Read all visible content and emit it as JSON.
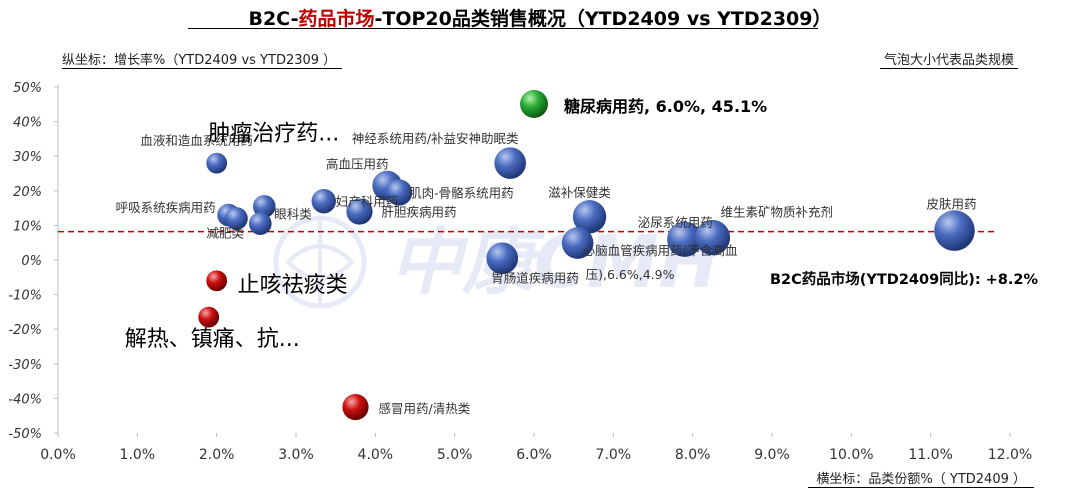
{
  "title": {
    "prefix": "B2C-",
    "accent": "药品市场",
    "suffix": "-TOP20品类销售概况（YTD2409  vs YTD2309）"
  },
  "y_axis_note": "纵坐标：增长率%（YTD2409 vs YTD2309 ）",
  "bubble_note": "气泡大小代表品类规模",
  "x_axis_note": "横坐标：品类份额%（ YTD2409 ）",
  "baseline_label": "B2C药品市场(YTD2409同比): +8.2%",
  "watermark": "中康CMH",
  "colors": {
    "blue": "#2f4f9e",
    "green": "#1a9c2a",
    "red": "#c00000",
    "baseline": "#c00000"
  },
  "chart_data": {
    "type": "scatter",
    "bubble": true,
    "xlabel": "横坐标：品类份额%（ YTD2409 ）",
    "ylabel": "纵坐标：增长率%（YTD2409 vs YTD2309 ）",
    "xlim": [
      0,
      12
    ],
    "ylim": [
      -50,
      50
    ],
    "x_ticks": [
      "0.0%",
      "1.0%",
      "2.0%",
      "3.0%",
      "4.0%",
      "5.0%",
      "6.0%",
      "7.0%",
      "8.0%",
      "9.0%",
      "10.0%",
      "11.0%",
      "12.0%"
    ],
    "y_ticks": [
      "50%",
      "40%",
      "30%",
      "20%",
      "10%",
      "0%",
      "-10%",
      "-20%",
      "-30%",
      "-40%",
      "-50%"
    ],
    "reference_line": {
      "y": 8.2,
      "label": "B2C药品市场(YTD2409同比): +8.2%"
    },
    "grid": false,
    "points": [
      {
        "name": "糖尿病用药, 6.0%, 45.1%",
        "x": 6.0,
        "y": 45.1,
        "size": 1.0,
        "color": "green"
      },
      {
        "name": "血液和造血系统用药",
        "x": 2.0,
        "y": 28.0,
        "size": 0.6,
        "color": "blue"
      },
      {
        "name": "神经系统用药/补益安神助眠类",
        "x": 5.7,
        "y": 28.0,
        "size": 1.2,
        "color": "blue"
      },
      {
        "name": "高血压用药",
        "x": 4.15,
        "y": 21.5,
        "size": 1.1,
        "color": "blue"
      },
      {
        "name": "肌肉-骨骼系统用药",
        "x": 4.3,
        "y": 19.5,
        "size": 0.9,
        "color": "blue"
      },
      {
        "name": "肿瘤治疗药...",
        "x": 2.6,
        "y": 15.5,
        "size": 0.7,
        "color": "blue"
      },
      {
        "name": "妇产科用药",
        "x": 3.35,
        "y": 17.0,
        "size": 0.8,
        "color": "blue"
      },
      {
        "name": "肝胆疾病用药",
        "x": 3.8,
        "y": 14.0,
        "size": 0.9,
        "color": "blue"
      },
      {
        "name": "呼吸系统疾病用药",
        "x": 2.15,
        "y": 13.0,
        "size": 0.7,
        "color": "blue"
      },
      {
        "name": "减肥类",
        "x": 2.25,
        "y": 12.0,
        "size": 0.7,
        "color": "blue"
      },
      {
        "name": "眼科类",
        "x": 2.55,
        "y": 10.5,
        "size": 0.7,
        "color": "blue"
      },
      {
        "name": "滋补保健类",
        "x": 6.7,
        "y": 12.5,
        "size": 1.3,
        "color": "blue"
      },
      {
        "name": "泌尿系统用药",
        "x": 7.9,
        "y": 6.0,
        "size": 1.4,
        "color": "blue"
      },
      {
        "name": "维生素矿物质补充剂",
        "x": 8.25,
        "y": 6.5,
        "size": 1.4,
        "color": "blue"
      },
      {
        "name": "皮肤用药",
        "x": 11.3,
        "y": 8.5,
        "size": 1.7,
        "color": "blue"
      },
      {
        "name": "心脑血管疾病用药(不含高血压),6.6%,4.9%",
        "x": 6.55,
        "y": 4.9,
        "size": 1.2,
        "color": "blue"
      },
      {
        "name": "胃肠道疾病用药",
        "x": 5.6,
        "y": 0.5,
        "size": 1.2,
        "color": "blue"
      },
      {
        "name": "止咳祛痰类",
        "x": 2.0,
        "y": -6.0,
        "size": 0.6,
        "color": "red"
      },
      {
        "name": "解热、镇痛、抗...",
        "x": 1.9,
        "y": -16.5,
        "size": 0.6,
        "color": "red"
      },
      {
        "name": "感冒用药/清热类",
        "x": 3.75,
        "y": -42.5,
        "size": 0.9,
        "color": "red"
      }
    ]
  }
}
